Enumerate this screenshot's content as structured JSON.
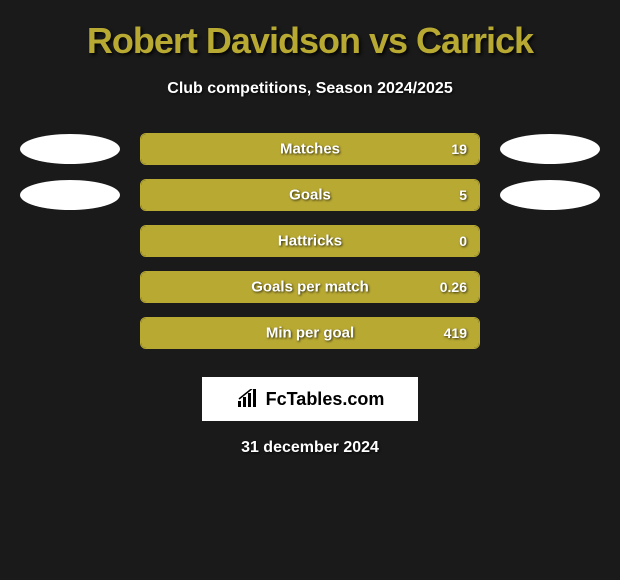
{
  "title": "Robert Davidson vs Carrick",
  "subtitle": "Club competitions, Season 2024/2025",
  "stats": [
    {
      "label": "Matches",
      "value": "19",
      "fill_pct": 100,
      "show_ellipses": true
    },
    {
      "label": "Goals",
      "value": "5",
      "fill_pct": 100,
      "show_ellipses": true
    },
    {
      "label": "Hattricks",
      "value": "0",
      "fill_pct": 100,
      "show_ellipses": false
    },
    {
      "label": "Goals per match",
      "value": "0.26",
      "fill_pct": 100,
      "show_ellipses": false
    },
    {
      "label": "Min per goal",
      "value": "419",
      "fill_pct": 100,
      "show_ellipses": false
    }
  ],
  "logo_text": "FcTables.com",
  "date": "31 december 2024",
  "colors": {
    "accent": "#b8a933",
    "background": "#1a1a1a",
    "text": "#ffffff"
  }
}
